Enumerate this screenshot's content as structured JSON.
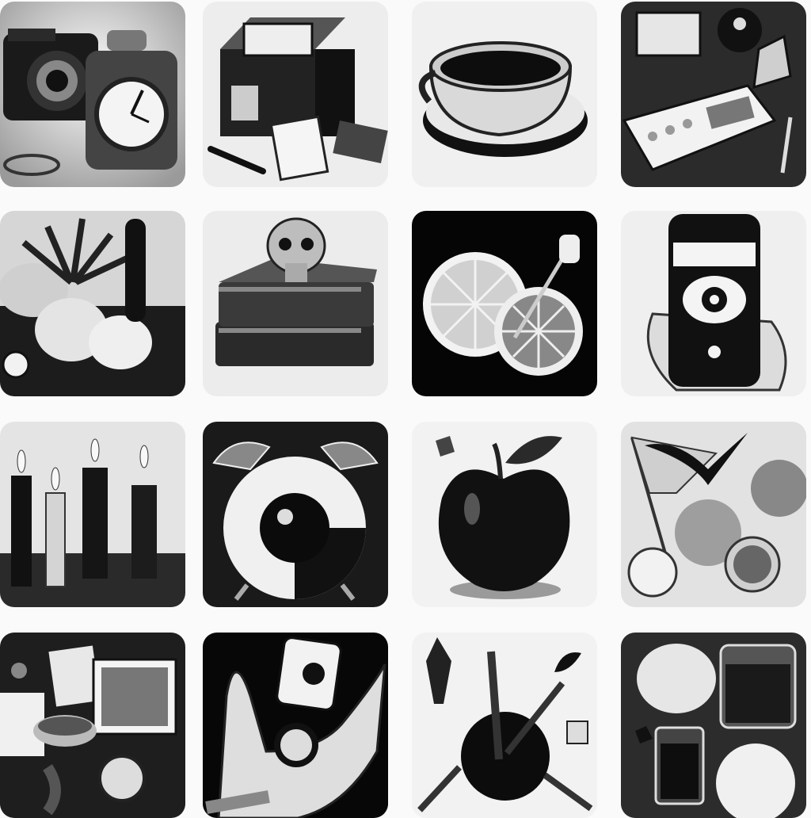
{
  "tiles": [
    {
      "icon": "camera-clock-icon"
    },
    {
      "icon": "gift-boxes-icon"
    },
    {
      "icon": "teacup-icon"
    },
    {
      "icon": "desk-supplies-icon"
    },
    {
      "icon": "apples-plant-icon"
    },
    {
      "icon": "skull-books-icon"
    },
    {
      "icon": "citrus-slices-icon"
    },
    {
      "icon": "smartphone-eye-icon"
    },
    {
      "icon": "candles-icon"
    },
    {
      "icon": "alarm-clock-eye-icon"
    },
    {
      "icon": "apple-icon"
    },
    {
      "icon": "flag-bird-fruit-icon"
    },
    {
      "icon": "open-boxes-icon"
    },
    {
      "icon": "hand-card-icon"
    },
    {
      "icon": "bowl-utensils-icon"
    },
    {
      "icon": "drinks-fruit-icon"
    }
  ],
  "colors": {
    "page": "#fafafa",
    "ink": "#111111",
    "mid": "#777777",
    "light": "#e6e6e6"
  }
}
